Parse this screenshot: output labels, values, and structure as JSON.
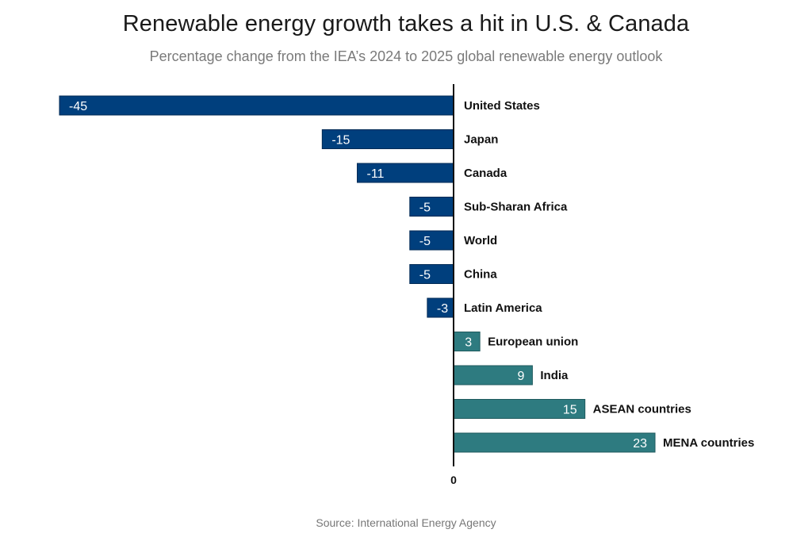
{
  "chart_data": {
    "type": "bar",
    "orientation": "horizontal",
    "title": "Renewable energy growth takes a hit in U.S. & Canada",
    "subtitle": "Percentage change from the IEA’s 2024 to 2025 global renewable energy outlook",
    "source": "Source: International Energy Agency",
    "xlabel": "",
    "ylabel": "",
    "categories": [
      "United States",
      "Japan",
      "Canada",
      "Sub-Sharan Africa",
      "World",
      "China",
      "Latin America",
      "European union",
      "India",
      "ASEAN countries",
      "MENA countries"
    ],
    "values": [
      -45,
      -15,
      -11,
      -5,
      -5,
      -5,
      -3,
      3,
      9,
      15,
      23
    ],
    "data_labels": [
      "-45",
      "-15",
      "-11",
      "-5",
      "-5",
      "-5",
      "-3",
      "3",
      "9",
      "15",
      "23"
    ],
    "xlim": [
      -45,
      23
    ],
    "x_ticks": [
      0
    ],
    "x_tick_labels": [
      "0"
    ],
    "grid": false,
    "legend": "none",
    "colors": {
      "negative": "#003f7d",
      "positive": "#2e7b80",
      "axis": "#111111"
    }
  }
}
